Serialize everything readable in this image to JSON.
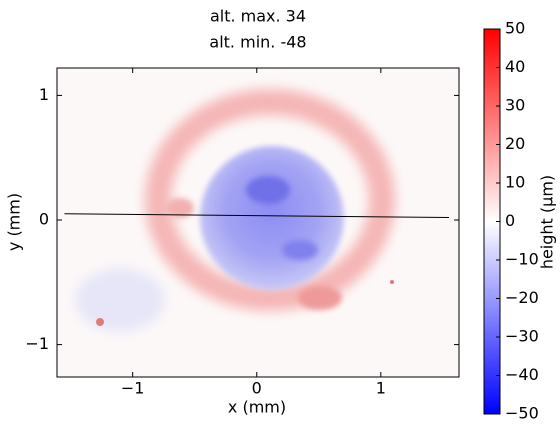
{
  "chart_data": {
    "type": "heatmap",
    "title": [
      "alt. max. 34",
      "alt. min. -48"
    ],
    "x_label": "x (mm)",
    "y_label": "y (mm)",
    "xlim": [
      -1.61,
      1.63
    ],
    "ylim": [
      -1.26,
      1.22
    ],
    "xticks": [
      {
        "value": -1,
        "label": "−1"
      },
      0,
      1
    ],
    "yticks": [
      {
        "value": -1,
        "label": "−1"
      },
      0,
      1
    ],
    "colorbar": {
      "label": "height (μm)",
      "lim": [
        -50,
        50
      ],
      "colors": [
        "#0000ff",
        "#ffffff",
        "#ff0000"
      ],
      "ticks": [
        {
          "value": -50,
          "label": "−50"
        },
        {
          "value": -40,
          "label": "−40"
        },
        {
          "value": -30,
          "label": "−30"
        },
        {
          "value": -20,
          "label": "−20"
        },
        {
          "value": -10,
          "label": "−10"
        },
        0,
        10,
        20,
        30,
        40,
        50
      ]
    },
    "profile_line": {
      "x": [
        -1.55,
        1.55
      ],
      "y": [
        0.05,
        0.02
      ],
      "color": "#000000"
    }
  }
}
